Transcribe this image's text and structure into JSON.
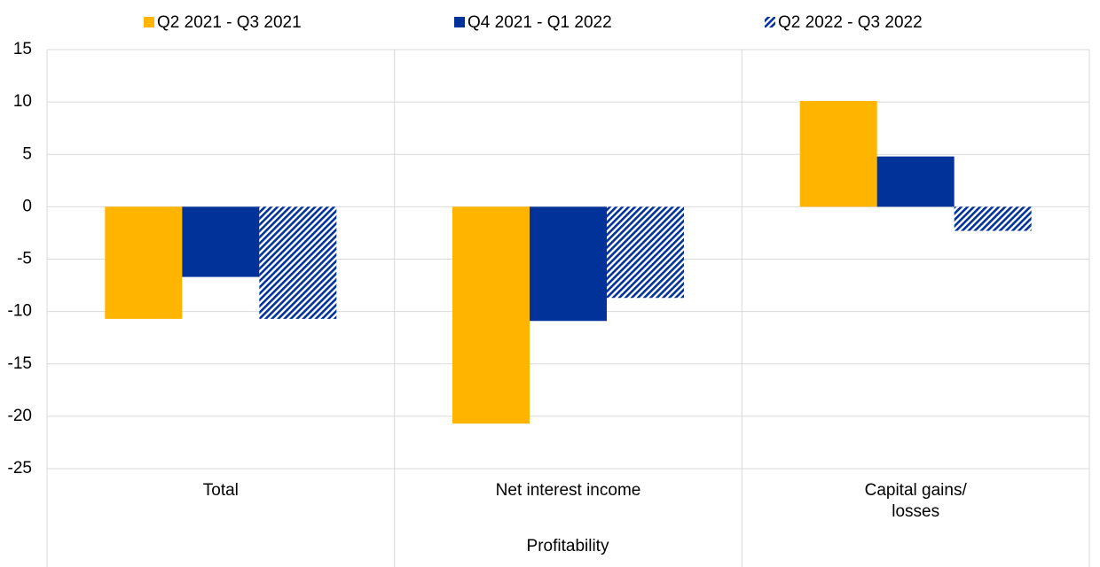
{
  "chart_data": {
    "type": "bar",
    "categories": [
      "Total",
      "Net interest income",
      "Capital gains/\nlosses"
    ],
    "x_label": "Profitability",
    "series": [
      {
        "name": "Q2 2021 - Q3 2021",
        "color": "#ffb400",
        "values": [
          -10.7,
          -20.7,
          10.1
        ]
      },
      {
        "name": "Q4 2021 - Q1 2022",
        "color": "#003299",
        "values": [
          -6.7,
          -10.9,
          4.8
        ]
      },
      {
        "name": "Q2 2022 - Q3 2022",
        "color": "#003299",
        "hatch": true,
        "values": [
          -10.7,
          -8.7,
          -2.3
        ]
      }
    ],
    "ylim": [
      -25,
      15
    ],
    "yticks": [
      -25,
      -20,
      -15,
      -10,
      -5,
      0,
      5,
      10,
      15
    ],
    "grid": true,
    "legend": "top"
  }
}
